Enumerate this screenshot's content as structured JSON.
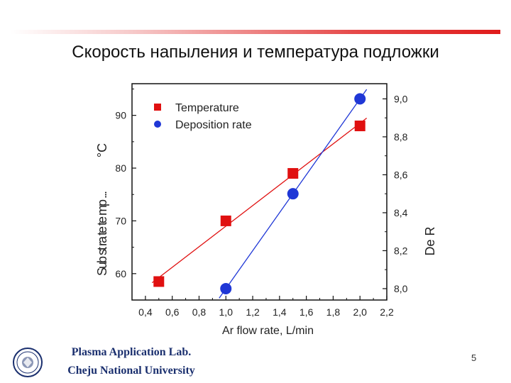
{
  "slide": {
    "title": "Скорость напыления и температура подложки",
    "footer_line1": "Plasma Application Lab.",
    "footer_line2": "Cheju National University",
    "page_number": "5"
  },
  "colors": {
    "temperature": "#e01010",
    "deposition": "#1f37d6",
    "accent_bar": "#e01b1b",
    "footer_text": "#1a2f6e"
  },
  "chart_data": {
    "type": "scatter",
    "xlabel": "Ar flow rate, L/min",
    "xlim": [
      0.3,
      2.2
    ],
    "x_ticks": [
      "0,4",
      "0,6",
      "0,8",
      "1,0",
      "1,2",
      "1,4",
      "1,6",
      "1,8",
      "2,0",
      "2,2"
    ],
    "left_axis": {
      "label_unit": "°C",
      "label_fragment": "Sub st ra te te mp ...",
      "ylim": [
        55,
        96
      ],
      "ticks": [
        "60",
        "70",
        "80",
        "90"
      ]
    },
    "right_axis": {
      "label_fragment": "De R",
      "ylim": [
        7.94,
        9.08
      ],
      "ticks": [
        "8,0",
        "8,2",
        "8,4",
        "8,6",
        "8,8",
        "9,0"
      ]
    },
    "legend": {
      "placement": "top-left"
    },
    "series": [
      {
        "name": "Temperature",
        "axis": "left",
        "marker": "square",
        "x": [
          0.5,
          1.0,
          1.5,
          2.0
        ],
        "y": [
          58.5,
          70,
          79,
          88
        ],
        "fit_line": true
      },
      {
        "name": "Deposition rate",
        "axis": "right",
        "marker": "circle",
        "x": [
          1.0,
          1.5,
          2.0
        ],
        "y": [
          8.0,
          8.5,
          9.0
        ],
        "fit_line": true
      }
    ]
  }
}
